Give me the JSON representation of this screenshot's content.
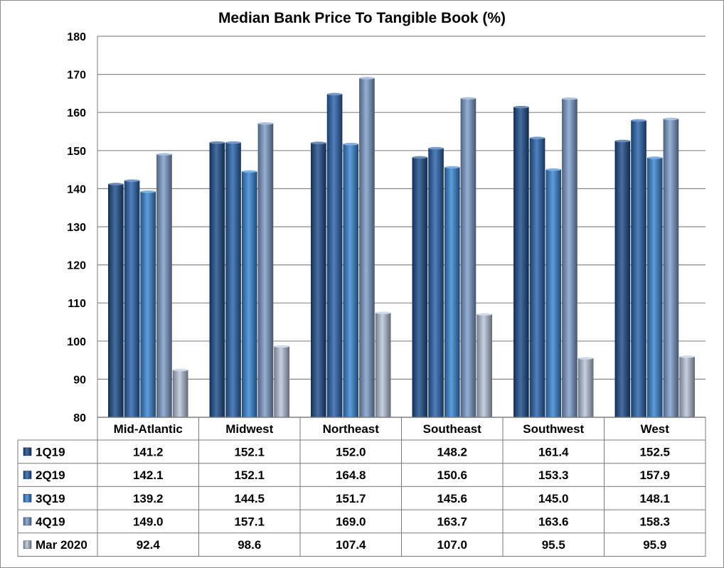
{
  "chart_data": {
    "type": "bar",
    "title": "Median Bank Price To Tangible Book (%)",
    "categories": [
      "Mid-Atlantic",
      "Midwest",
      "Northeast",
      "Southeast",
      "Southwest",
      "West"
    ],
    "series": [
      {
        "name": "1Q19",
        "values": [
          141.2,
          152.1,
          152.0,
          148.2,
          161.4,
          152.5
        ],
        "color": "#1f4e8c"
      },
      {
        "name": "2Q19",
        "values": [
          142.1,
          152.1,
          164.8,
          150.6,
          153.3,
          157.9
        ],
        "color": "#2a64ad"
      },
      {
        "name": "3Q19",
        "values": [
          139.2,
          144.5,
          151.7,
          145.6,
          145.0,
          148.1
        ],
        "color": "#3a86d6"
      },
      {
        "name": "4Q19",
        "values": [
          149.0,
          157.1,
          169.0,
          163.7,
          163.6,
          158.3
        ],
        "color": "#7f9fcc"
      },
      {
        "name": "Mar 2020",
        "values": [
          92.4,
          98.6,
          107.4,
          107.0,
          95.5,
          95.9
        ],
        "color": "#b8c7dc"
      }
    ],
    "table_values": [
      [
        "141.2",
        "152.1",
        "152.0",
        "148.2",
        "161.4",
        "152.5"
      ],
      [
        "142.1",
        "152.1",
        "164.8",
        "150.6",
        "153.3",
        "157.9"
      ],
      [
        "139.2",
        "144.5",
        "151.7",
        "145.6",
        "145.0",
        "148.1"
      ],
      [
        "149.0",
        "157.1",
        "169.0",
        "163.7",
        "163.6",
        "158.3"
      ],
      [
        "92.4",
        "98.6",
        "107.4",
        "107.0",
        "95.5",
        "95.9"
      ]
    ],
    "ylim": [
      80,
      180
    ],
    "yticks": [
      "80",
      "90",
      "100",
      "110",
      "120",
      "130",
      "140",
      "150",
      "160",
      "170",
      "180"
    ],
    "grid": true,
    "legend": "data table below chart"
  }
}
